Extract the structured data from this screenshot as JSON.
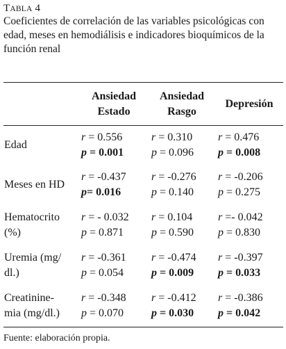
{
  "table_label": {
    "first": "T",
    "rest": "ABLA",
    "number": "4"
  },
  "caption": "Coeficientes de correlación de las variables psicológicas con edad, meses en hemodiálisis e indicadores bioquímicos de la función renal",
  "headers": {
    "col1_line1": "Ansiedad",
    "col1_line2": "Estado",
    "col2_line1": "Ansiedad",
    "col2_line2": "Rasgo",
    "col3": "Depresión"
  },
  "rows": [
    {
      "label": [
        "Edad"
      ],
      "cells": [
        {
          "r_sym": "r",
          "r_val": " = 0.556",
          "p_sym": "p",
          "p_val": " = 0.001",
          "p_bold": true
        },
        {
          "r_sym": "r",
          "r_val": " = 0.310",
          "p_sym": "p",
          "p_val": " = 0.096",
          "p_bold": false
        },
        {
          "r_sym": "r",
          "r_val": " = 0.476",
          "p_sym": "p",
          "p_val": " = 0.008",
          "p_bold": true
        }
      ]
    },
    {
      "label": [
        "Meses en HD"
      ],
      "cells": [
        {
          "r_sym": "r",
          "r_val": " = -0.437",
          "p_sym": "p",
          "p_val": "= 0.016",
          "p_bold": true
        },
        {
          "r_sym": "r",
          "r_val": " = -0.276",
          "p_sym": "p",
          "p_val": " = 0.140",
          "p_bold": false
        },
        {
          "r_sym": "r",
          "r_val": " = -0.206",
          "p_sym": "p",
          "p_val": " = 0.275",
          "p_bold": false
        }
      ]
    },
    {
      "label": [
        "Hematocrito",
        "(%)"
      ],
      "cells": [
        {
          "r_sym": "r",
          "r_val": " = - 0.032",
          "p_sym": "p",
          "p_val": " = 0.871",
          "p_bold": false
        },
        {
          "r_sym": "r",
          "r_val": " = 0.104",
          "p_sym": "p",
          "p_val": " = 0.590",
          "p_bold": false
        },
        {
          "r_sym": "r",
          "r_val": " =- 0.042",
          "p_sym": "p",
          "p_val": " = 0.830",
          "p_bold": false
        }
      ]
    },
    {
      "label": [
        "Uremia (mg/",
        "dl.)"
      ],
      "cells": [
        {
          "r_sym": "r",
          "r_val": " = -0.361",
          "p_sym": "p",
          "p_val": " = 0.054",
          "p_bold": false
        },
        {
          "r_sym": "r",
          "r_val": " = -0.474",
          "p_sym": "p",
          "p_val": " = 0.009",
          "p_bold": true
        },
        {
          "r_sym": "r",
          "r_val": " = -0.397",
          "p_sym": "p",
          "p_val": " = 0.033",
          "p_bold": true
        }
      ]
    },
    {
      "label": [
        "Creatinine-",
        "mia (mg/dl.)"
      ],
      "cells": [
        {
          "r_sym": "r",
          "r_val": " = -0.348",
          "p_sym": "p",
          "p_val": " = 0.070",
          "p_bold": false
        },
        {
          "r_sym": "r",
          "r_val": " = -0.412",
          "p_sym": "p",
          "p_val": " = 0.030",
          "p_bold": true
        },
        {
          "r_sym": "r",
          "r_val": " = -0.386",
          "p_sym": "p",
          "p_val": " = 0.042",
          "p_bold": true
        }
      ]
    }
  ],
  "footer": "Fuente: elaboración propia."
}
